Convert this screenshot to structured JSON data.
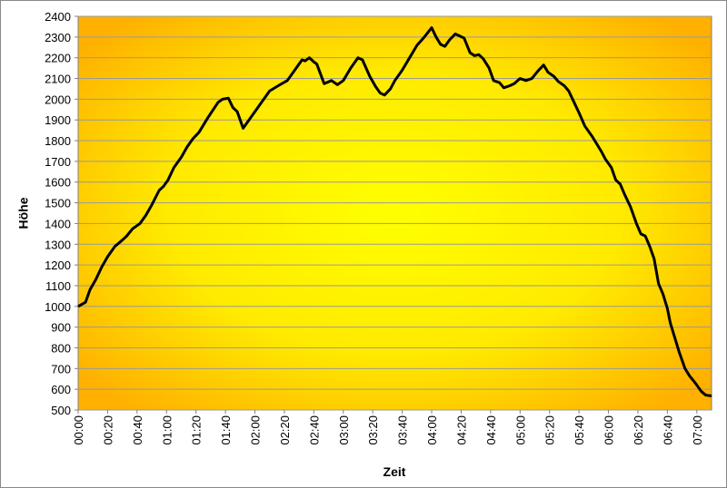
{
  "chart_data": {
    "type": "line",
    "x_label": "Zeit",
    "y_label": "Höhe",
    "x": [
      0,
      5,
      8,
      12,
      16,
      20,
      25,
      30,
      33,
      37,
      42,
      46,
      50,
      55,
      58,
      61,
      65,
      70,
      74,
      78,
      82,
      88,
      95,
      98,
      102,
      105,
      108,
      112,
      116,
      120,
      125,
      130,
      137,
      142,
      147,
      152,
      154,
      157,
      160,
      162,
      167,
      172,
      176,
      180,
      185,
      190,
      193,
      198,
      202,
      205,
      208,
      212,
      215,
      220,
      225,
      230,
      235,
      240,
      243,
      246,
      249,
      252,
      256,
      262,
      266,
      269,
      272,
      275,
      279,
      282,
      286,
      289,
      293,
      296,
      300,
      304,
      308,
      312,
      316,
      319,
      323,
      326,
      330,
      333,
      337,
      340,
      344,
      349,
      355,
      358,
      362,
      365,
      368,
      371,
      375,
      379,
      382,
      385,
      388,
      391,
      394,
      397,
      400,
      402,
      405,
      408,
      412,
      415,
      419,
      423,
      426,
      430
    ],
    "series": [
      {
        "name": "Höhe",
        "color": "#000000",
        "values": [
          1000,
          1020,
          1080,
          1130,
          1190,
          1240,
          1290,
          1320,
          1340,
          1375,
          1400,
          1440,
          1490,
          1560,
          1580,
          1610,
          1670,
          1720,
          1770,
          1810,
          1840,
          1910,
          1985,
          2000,
          2005,
          1960,
          1940,
          1860,
          1900,
          1940,
          1990,
          2040,
          2070,
          2090,
          2140,
          2190,
          2185,
          2200,
          2180,
          2170,
          2075,
          2090,
          2070,
          2090,
          2150,
          2200,
          2190,
          2110,
          2060,
          2030,
          2020,
          2050,
          2090,
          2140,
          2200,
          2260,
          2300,
          2345,
          2300,
          2265,
          2255,
          2285,
          2315,
          2295,
          2225,
          2210,
          2215,
          2195,
          2150,
          2090,
          2080,
          2055,
          2065,
          2075,
          2100,
          2090,
          2100,
          2135,
          2165,
          2130,
          2110,
          2085,
          2065,
          2040,
          1980,
          1935,
          1870,
          1820,
          1750,
          1710,
          1670,
          1610,
          1590,
          1540,
          1480,
          1400,
          1350,
          1340,
          1290,
          1230,
          1110,
          1060,
          990,
          920,
          850,
          780,
          700,
          665,
          630,
          590,
          572,
          568
        ]
      }
    ],
    "xlim": [
      0,
      430
    ],
    "xticks": [
      {
        "value": 0,
        "label": "00:00"
      },
      {
        "value": 20,
        "label": "00:20"
      },
      {
        "value": 40,
        "label": "00:40"
      },
      {
        "value": 60,
        "label": "01:00"
      },
      {
        "value": 80,
        "label": "01:20"
      },
      {
        "value": 100,
        "label": "01:40"
      },
      {
        "value": 120,
        "label": "02:00"
      },
      {
        "value": 140,
        "label": "02:20"
      },
      {
        "value": 160,
        "label": "02:40"
      },
      {
        "value": 180,
        "label": "03:00"
      },
      {
        "value": 200,
        "label": "03:20"
      },
      {
        "value": 220,
        "label": "03:40"
      },
      {
        "value": 240,
        "label": "04:00"
      },
      {
        "value": 260,
        "label": "04:20"
      },
      {
        "value": 280,
        "label": "04:40"
      },
      {
        "value": 300,
        "label": "05:00"
      },
      {
        "value": 320,
        "label": "05:20"
      },
      {
        "value": 340,
        "label": "05:40"
      },
      {
        "value": 360,
        "label": "06:00"
      },
      {
        "value": 380,
        "label": "06:20"
      },
      {
        "value": 400,
        "label": "06:40"
      },
      {
        "value": 420,
        "label": "07:00"
      }
    ],
    "ylim": [
      500,
      2400
    ],
    "yticks": [
      500,
      600,
      700,
      800,
      900,
      1000,
      1100,
      1200,
      1300,
      1400,
      1500,
      1600,
      1700,
      1800,
      1900,
      2000,
      2100,
      2200,
      2300,
      2400
    ],
    "grid": true
  }
}
